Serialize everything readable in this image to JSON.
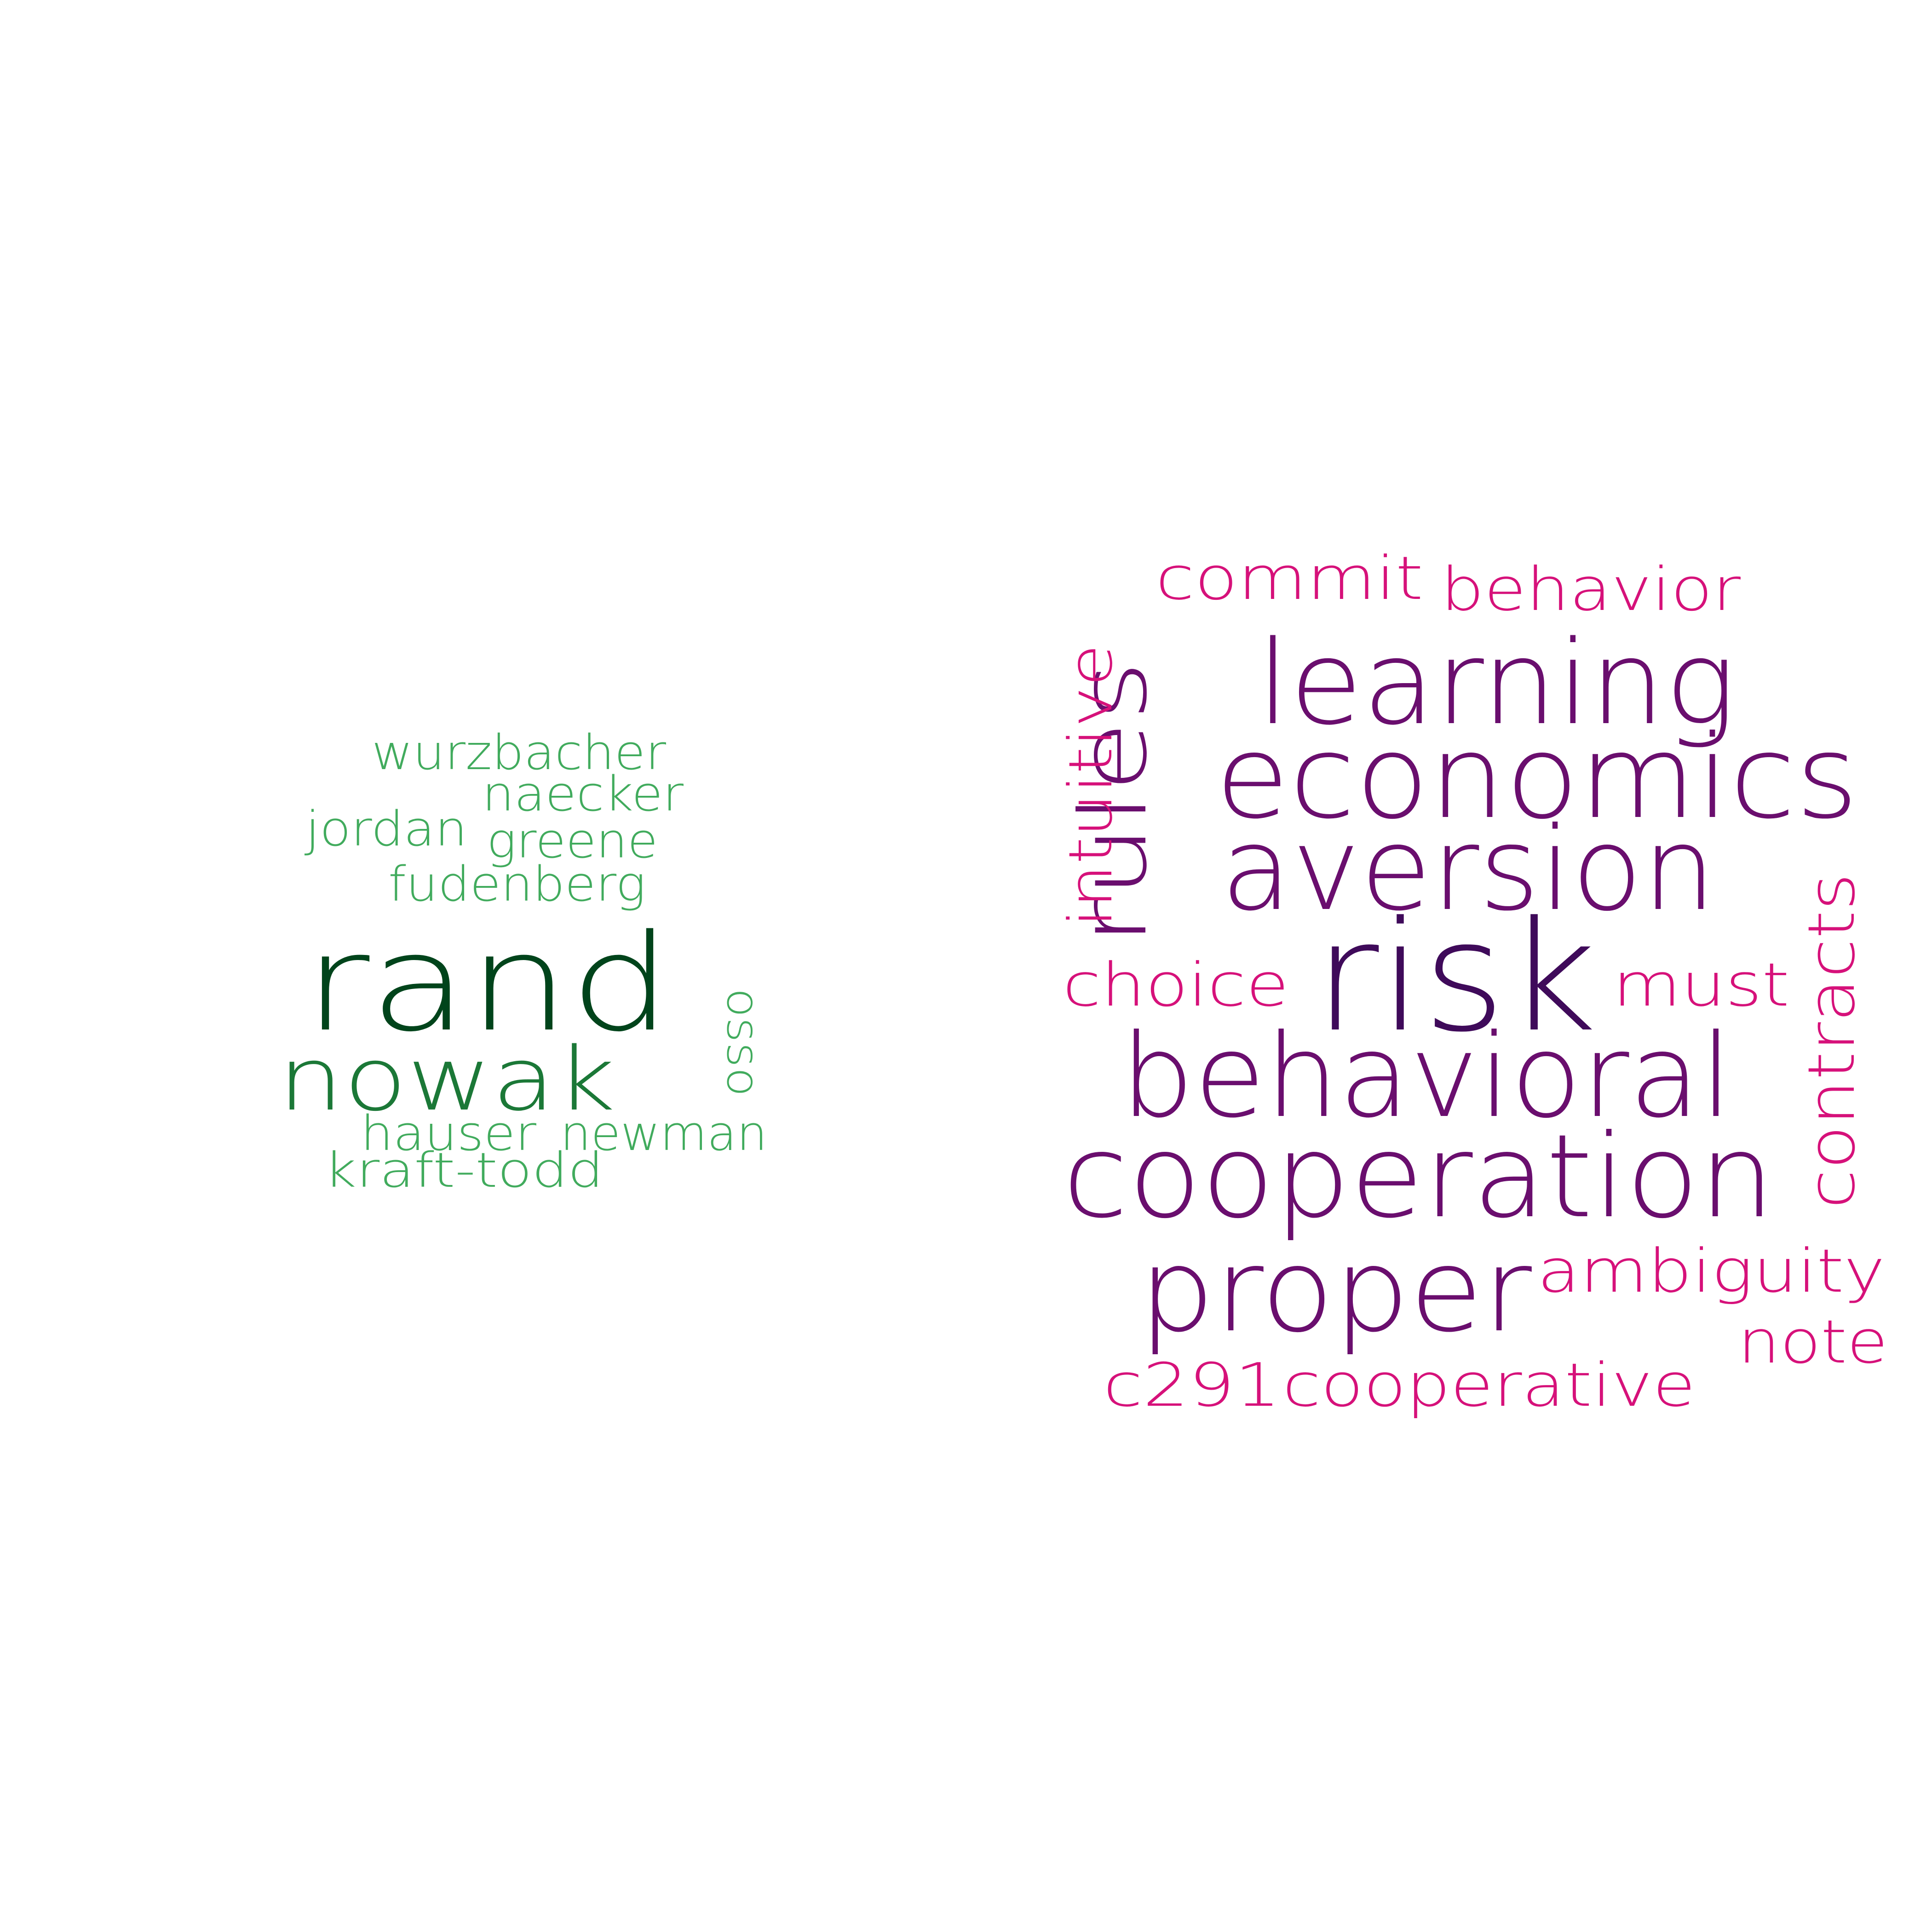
{
  "left_cloud": {
    "words": [
      {
        "text": "wurzbacher",
        "color": "#41ab5d"
      },
      {
        "text": "naecker",
        "color": "#41ab5d"
      },
      {
        "text": "jordan",
        "color": "#41ab5d"
      },
      {
        "text": "greene",
        "color": "#41ab5d"
      },
      {
        "text": "fudenberg",
        "color": "#41ab5d"
      },
      {
        "text": "rand",
        "color": "#00441b"
      },
      {
        "text": "nowak",
        "color": "#1b7837"
      },
      {
        "text": "osso",
        "color": "#41ab5d"
      },
      {
        "text": "hauser",
        "color": "#41ab5d"
      },
      {
        "text": "newman",
        "color": "#41ab5d"
      },
      {
        "text": "kraft-todd",
        "color": "#41ab5d"
      }
    ]
  },
  "right_cloud": {
    "words": [
      {
        "text": "commit",
        "color": "#d6117a"
      },
      {
        "text": "behavior",
        "color": "#d6117a"
      },
      {
        "text": "learning",
        "color": "#6a0e6e"
      },
      {
        "text": "rules",
        "color": "#6a0e6e"
      },
      {
        "text": "intuitive",
        "color": "#d6117a"
      },
      {
        "text": "economics",
        "color": "#6a0e6e"
      },
      {
        "text": "aversion",
        "color": "#6a0e6e"
      },
      {
        "text": "risk",
        "color": "#3f0a5a"
      },
      {
        "text": "choice",
        "color": "#d6117a"
      },
      {
        "text": "must",
        "color": "#d6117a"
      },
      {
        "text": "contracts",
        "color": "#d6117a"
      },
      {
        "text": "behavioral",
        "color": "#6a0e6e"
      },
      {
        "text": "cooperation",
        "color": "#6a0e6e"
      },
      {
        "text": "proper",
        "color": "#6a0e6e"
      },
      {
        "text": "ambiguity",
        "color": "#d6117a"
      },
      {
        "text": "note",
        "color": "#d6117a"
      },
      {
        "text": "c291",
        "color": "#d6117a"
      },
      {
        "text": "cooperative",
        "color": "#d6117a"
      }
    ]
  }
}
